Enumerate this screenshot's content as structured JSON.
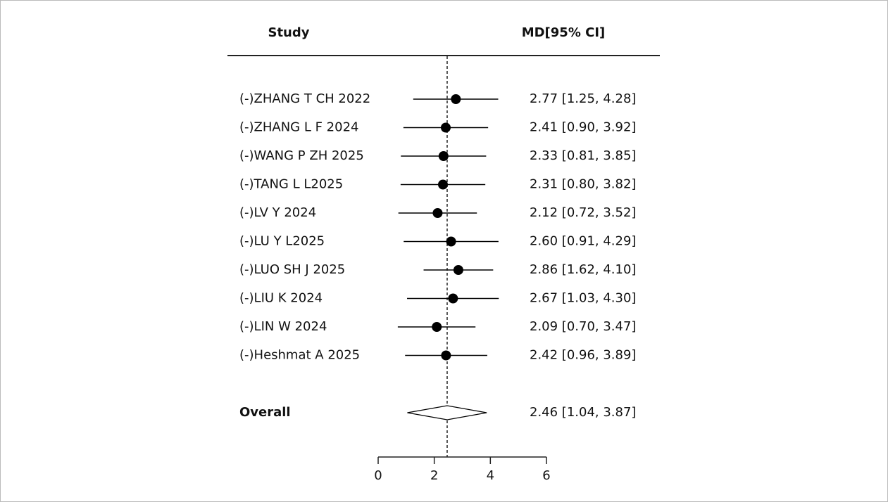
{
  "chart_data": {
    "type": "forest",
    "study_header": "Study",
    "estimate_header": "MD[95% CI]",
    "categories": [
      "(-)ZHANG T CH 2022",
      "(-)ZHANG L F 2024",
      "(-)WANG P ZH 2025",
      "(-)TANG L L2025",
      "(-)LV Y 2024",
      "(-)LU Y L2025",
      "(-)LUO SH J 2025",
      "(-)LIU K 2024",
      "(-)LIN W 2024",
      "(-)Heshmat A 2025"
    ],
    "values": [
      2.77,
      2.41,
      2.33,
      2.31,
      2.12,
      2.6,
      2.86,
      2.67,
      2.09,
      2.42
    ],
    "lower": [
      1.25,
      0.9,
      0.81,
      0.8,
      0.72,
      0.91,
      1.62,
      1.03,
      0.7,
      0.96
    ],
    "upper": [
      4.28,
      3.92,
      3.85,
      3.82,
      3.52,
      4.29,
      4.1,
      4.3,
      3.47,
      3.89
    ],
    "value_labels": [
      "2.77 [1.25, 4.28]",
      "2.41 [0.90, 3.92]",
      "2.33 [0.81, 3.85]",
      "2.31 [0.80, 3.82]",
      "2.12 [0.72, 3.52]",
      "2.60 [0.91, 4.29]",
      "2.86 [1.62, 4.10]",
      "2.67 [1.03, 4.30]",
      "2.09 [0.70, 3.47]",
      "2.42 [0.96, 3.89]"
    ],
    "overall": {
      "label": "Overall",
      "value": 2.46,
      "lower": 1.04,
      "upper": 3.87,
      "value_label": "2.46 [1.04, 3.87]"
    },
    "xlim": [
      0,
      6
    ],
    "xticks": [
      0,
      2,
      4,
      6
    ],
    "color": "#000000"
  }
}
